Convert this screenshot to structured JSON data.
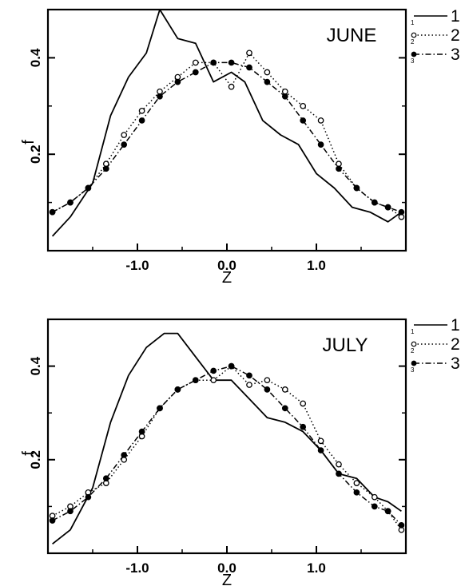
{
  "chart_data": [
    {
      "type": "line",
      "panel_label": "JUNE",
      "xlabel": "Z",
      "ylabel": "f",
      "xlim": [
        -2.0,
        2.0
      ],
      "ylim": [
        0.0,
        0.5
      ],
      "x_ticks": [
        -1.0,
        0.0,
        1.0
      ],
      "x_tick_labels": [
        "-1.0",
        "0.0",
        "1.0"
      ],
      "y_ticks": [
        0.2,
        0.4
      ],
      "y_tick_labels": [
        "0.2",
        "0.4"
      ],
      "grid": false,
      "legend_position": "right",
      "series": [
        {
          "name": "1",
          "style": "solid",
          "marker": "none",
          "x": [
            -1.95,
            -1.75,
            -1.5,
            -1.3,
            -1.1,
            -0.9,
            -0.75,
            -0.55,
            -0.35,
            -0.15,
            0.05,
            0.2,
            0.4,
            0.6,
            0.8,
            1.0,
            1.2,
            1.4,
            1.6,
            1.8,
            1.95
          ],
          "y": [
            0.03,
            0.07,
            0.14,
            0.28,
            0.36,
            0.41,
            0.5,
            0.44,
            0.43,
            0.35,
            0.37,
            0.35,
            0.27,
            0.24,
            0.22,
            0.16,
            0.13,
            0.09,
            0.08,
            0.06,
            0.08
          ]
        },
        {
          "name": "2",
          "style": "dotted",
          "marker": "open-circle",
          "x": [
            -1.95,
            -1.75,
            -1.55,
            -1.35,
            -1.15,
            -0.95,
            -0.75,
            -0.55,
            -0.35,
            -0.15,
            0.05,
            0.25,
            0.45,
            0.65,
            0.85,
            1.05,
            1.25,
            1.45,
            1.65,
            1.8,
            1.95
          ],
          "y": [
            0.08,
            0.1,
            0.13,
            0.18,
            0.24,
            0.29,
            0.33,
            0.36,
            0.39,
            0.39,
            0.34,
            0.41,
            0.37,
            0.33,
            0.3,
            0.27,
            0.18,
            0.13,
            0.1,
            0.09,
            0.07
          ]
        },
        {
          "name": "3",
          "style": "dash-dot",
          "marker": "filled-circle",
          "x": [
            -1.95,
            -1.75,
            -1.55,
            -1.35,
            -1.15,
            -0.95,
            -0.75,
            -0.55,
            -0.35,
            -0.15,
            0.05,
            0.25,
            0.45,
            0.65,
            0.85,
            1.05,
            1.25,
            1.45,
            1.65,
            1.8,
            1.95
          ],
          "y": [
            0.08,
            0.1,
            0.13,
            0.17,
            0.22,
            0.27,
            0.32,
            0.35,
            0.37,
            0.39,
            0.39,
            0.38,
            0.35,
            0.32,
            0.27,
            0.22,
            0.17,
            0.13,
            0.1,
            0.09,
            0.08
          ]
        }
      ]
    },
    {
      "type": "line",
      "panel_label": "JULY",
      "xlabel": "Z",
      "ylabel": "f",
      "xlim": [
        -2.0,
        2.0
      ],
      "ylim": [
        0.0,
        0.5
      ],
      "x_ticks": [
        -1.0,
        0.0,
        1.0
      ],
      "x_tick_labels": [
        "-1.0",
        "0.0",
        "1.0"
      ],
      "y_ticks": [
        0.2,
        0.4
      ],
      "y_tick_labels": [
        "0.2",
        "0.4"
      ],
      "grid": false,
      "legend_position": "right",
      "series": [
        {
          "name": "1",
          "style": "solid",
          "marker": "none",
          "x": [
            -1.95,
            -1.75,
            -1.5,
            -1.3,
            -1.1,
            -0.9,
            -0.7,
            -0.55,
            -0.35,
            -0.15,
            0.05,
            0.25,
            0.45,
            0.65,
            0.85,
            1.05,
            1.25,
            1.45,
            1.65,
            1.8,
            1.95
          ],
          "y": [
            0.02,
            0.05,
            0.14,
            0.28,
            0.38,
            0.44,
            0.47,
            0.47,
            0.42,
            0.37,
            0.37,
            0.33,
            0.29,
            0.28,
            0.26,
            0.22,
            0.17,
            0.16,
            0.12,
            0.11,
            0.09
          ]
        },
        {
          "name": "2",
          "style": "dotted",
          "marker": "open-circle",
          "x": [
            -1.95,
            -1.75,
            -1.55,
            -1.35,
            -1.15,
            -0.95,
            -0.75,
            -0.55,
            -0.35,
            -0.15,
            0.05,
            0.25,
            0.45,
            0.65,
            0.85,
            1.05,
            1.25,
            1.45,
            1.65,
            1.8,
            1.95
          ],
          "y": [
            0.08,
            0.1,
            0.13,
            0.15,
            0.2,
            0.25,
            0.31,
            0.35,
            0.37,
            0.37,
            0.4,
            0.36,
            0.37,
            0.35,
            0.32,
            0.24,
            0.19,
            0.15,
            0.12,
            0.09,
            0.05
          ]
        },
        {
          "name": "3",
          "style": "dash-dot",
          "marker": "filled-circle",
          "x": [
            -1.95,
            -1.75,
            -1.55,
            -1.35,
            -1.15,
            -0.95,
            -0.75,
            -0.55,
            -0.35,
            -0.15,
            0.05,
            0.25,
            0.45,
            0.65,
            0.85,
            1.05,
            1.25,
            1.45,
            1.65,
            1.8,
            1.95
          ],
          "y": [
            0.07,
            0.09,
            0.12,
            0.16,
            0.21,
            0.26,
            0.31,
            0.35,
            0.37,
            0.39,
            0.4,
            0.38,
            0.35,
            0.31,
            0.27,
            0.22,
            0.17,
            0.13,
            0.1,
            0.09,
            0.06
          ]
        }
      ]
    }
  ]
}
